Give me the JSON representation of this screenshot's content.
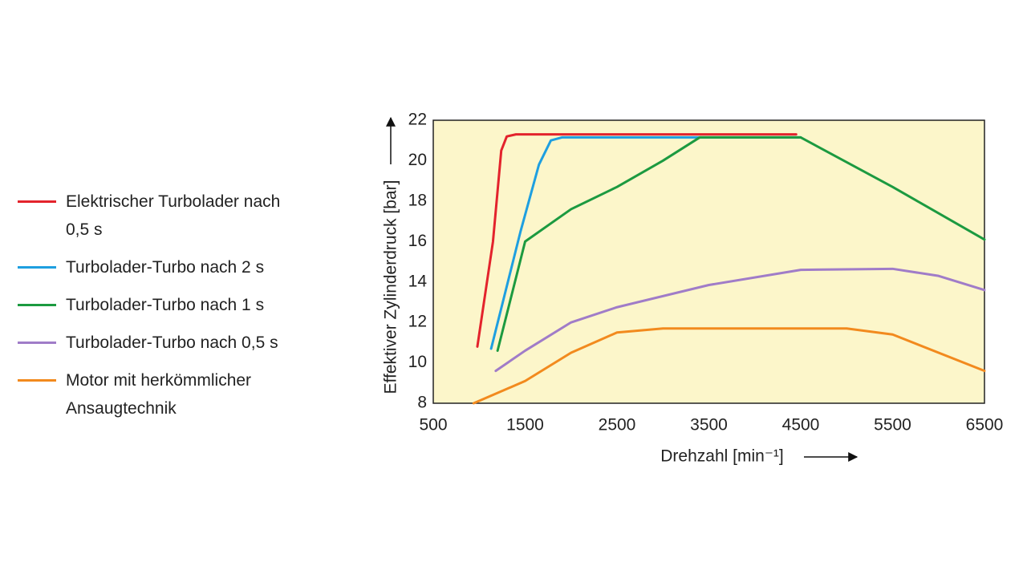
{
  "chart_data": {
    "type": "line",
    "xlabel": "Drehzahl [min⁻¹]",
    "ylabel": "Effektiver Zylinderdruck [bar]",
    "xlim": [
      500,
      6500
    ],
    "xticks": [
      500,
      1500,
      2500,
      3500,
      4500,
      5500,
      6500
    ],
    "ylim": [
      8,
      22
    ],
    "yticks": [
      8,
      10,
      12,
      14,
      16,
      18,
      20,
      22
    ],
    "background": "#fcf6ca",
    "legend": "left",
    "series": [
      {
        "name": "Elektrischer Turbolader nach 0,5 s",
        "color": "#e3232c",
        "x": [
          980,
          1150,
          1240,
          1300,
          1400,
          4450
        ],
        "values": [
          10.8,
          16,
          20.5,
          21.2,
          21.3,
          21.3
        ]
      },
      {
        "name": "Turbolader-Turbo nach 2 s",
        "color": "#1e9fe0",
        "x": [
          1130,
          1450,
          1650,
          1780,
          1900,
          4500
        ],
        "values": [
          10.7,
          16.5,
          19.8,
          21,
          21.15,
          21.15
        ]
      },
      {
        "name": "Turbolader-Turbo nach 1 s",
        "color": "#1c9a40",
        "x": [
          1200,
          1500,
          2000,
          2500,
          3000,
          3400,
          4500,
          5500,
          6500
        ],
        "values": [
          10.6,
          16,
          17.6,
          18.7,
          20,
          21.15,
          21.15,
          18.7,
          16.1
        ]
      },
      {
        "name": "Turbolader-Turbo nach 0,5 s",
        "color": "#a07cc8",
        "x": [
          1180,
          1500,
          2000,
          2500,
          3500,
          4500,
          5500,
          6000,
          6500
        ],
        "values": [
          9.6,
          10.6,
          12,
          12.75,
          13.85,
          14.6,
          14.65,
          14.3,
          13.6
        ]
      },
      {
        "name": "Motor mit herkömmlicher Ansaugtechnik",
        "color": "#f28a1e",
        "x": [
          940,
          1500,
          2000,
          2500,
          3000,
          5000,
          5500,
          6500
        ],
        "values": [
          8,
          9.1,
          10.5,
          11.5,
          11.7,
          11.7,
          11.4,
          9.6
        ]
      }
    ]
  }
}
